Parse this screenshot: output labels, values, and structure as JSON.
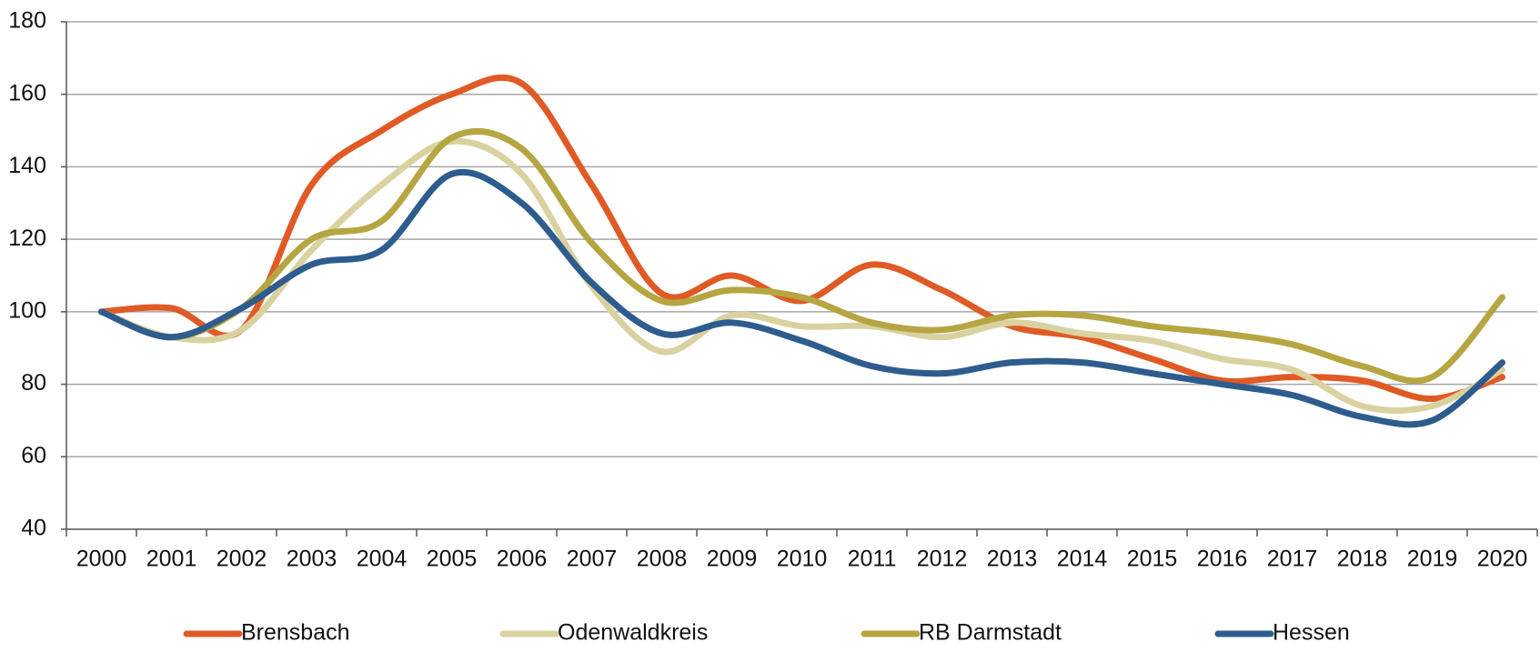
{
  "chart_data": {
    "type": "line",
    "categories": [
      "2000",
      "2001",
      "2002",
      "2003",
      "2004",
      "2005",
      "2006",
      "2007",
      "2008",
      "2009",
      "2010",
      "2011",
      "2012",
      "2013",
      "2014",
      "2015",
      "2016",
      "2017",
      "2018",
      "2019",
      "2020"
    ],
    "series": [
      {
        "name": "Brensbach",
        "color": "#e05a25",
        "values": [
          100,
          101,
          95,
          135,
          150,
          160,
          163,
          135,
          105,
          110,
          103,
          113,
          106,
          96,
          93,
          87,
          81,
          82,
          81,
          76,
          82
        ]
      },
      {
        "name": "Odenwaldkreis",
        "color": "#d9d2a0",
        "values": [
          100,
          93,
          95,
          117,
          135,
          147,
          138,
          107,
          89,
          99,
          96,
          96,
          93,
          97,
          94,
          92,
          87,
          84,
          74,
          74,
          84
        ]
      },
      {
        "name": "RB Darmstadt",
        "color": "#b5a642",
        "values": [
          100,
          93,
          101,
          120,
          125,
          148,
          145,
          119,
          103,
          106,
          104,
          97,
          95,
          99,
          99,
          96,
          94,
          91,
          85,
          82,
          104
        ]
      },
      {
        "name": "Hessen",
        "color": "#2e5c8e",
        "values": [
          100,
          93,
          101,
          113,
          117,
          138,
          130,
          108,
          94,
          97,
          92,
          85,
          83,
          86,
          86,
          83,
          80,
          77,
          71,
          70,
          86
        ]
      }
    ],
    "ylim": [
      40,
      180
    ],
    "yticks": [
      40,
      60,
      80,
      100,
      120,
      140,
      160,
      180
    ],
    "grid": true,
    "legend": "bottom"
  }
}
